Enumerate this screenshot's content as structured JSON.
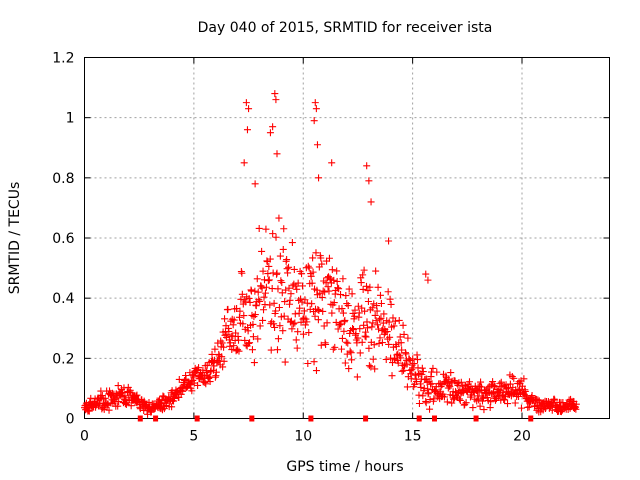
{
  "chart_data": {
    "type": "scatter",
    "title": "Day 040 of 2015, SRMTID for receiver ista",
    "xlabel": "GPS time / hours",
    "ylabel": "SRMTID / TECUs",
    "xlim": [
      0,
      24
    ],
    "ylim": [
      0,
      1.2
    ],
    "xticks": [
      0,
      5,
      10,
      15,
      20
    ],
    "xtick_labels": [
      "0",
      "5",
      "10",
      "15",
      "20"
    ],
    "yticks": [
      0,
      0.2,
      0.4,
      0.6,
      0.8,
      1.0,
      1.2
    ],
    "ytick_labels": [
      "0",
      "0.2",
      "0.4",
      "0.6",
      "0.8",
      "1",
      "1.2"
    ],
    "grid": true,
    "marker": "plus",
    "color": "#ff0000",
    "series": [
      {
        "name": "SRMTID",
        "profile_x": [
          0,
          0.5,
          1,
          1.5,
          2,
          2.5,
          3,
          3.5,
          4,
          4.5,
          5,
          5.5,
          6,
          6.5,
          7,
          7.5,
          8,
          8.5,
          9,
          9.5,
          10,
          10.5,
          11,
          11.5,
          12,
          12.5,
          13,
          13.5,
          14,
          14.5,
          15,
          15.5,
          16,
          16.5,
          17,
          17.5,
          18,
          18.5,
          19,
          19.5,
          20,
          20.5,
          21,
          21.5,
          22,
          22.5
        ],
        "profile_y": [
          0.04,
          0.05,
          0.06,
          0.07,
          0.08,
          0.05,
          0.04,
          0.05,
          0.07,
          0.11,
          0.14,
          0.14,
          0.17,
          0.28,
          0.32,
          0.36,
          0.42,
          0.43,
          0.45,
          0.4,
          0.36,
          0.42,
          0.4,
          0.35,
          0.32,
          0.3,
          0.35,
          0.3,
          0.26,
          0.22,
          0.16,
          0.12,
          0.09,
          0.1,
          0.1,
          0.09,
          0.08,
          0.08,
          0.09,
          0.09,
          0.1,
          0.05,
          0.04,
          0.05,
          0.04,
          0.04
        ],
        "spread": [
          0.02,
          0.02,
          0.03,
          0.03,
          0.03,
          0.02,
          0.02,
          0.02,
          0.03,
          0.03,
          0.03,
          0.03,
          0.05,
          0.08,
          0.12,
          0.16,
          0.18,
          0.2,
          0.2,
          0.18,
          0.16,
          0.18,
          0.18,
          0.16,
          0.14,
          0.14,
          0.16,
          0.14,
          0.12,
          0.1,
          0.07,
          0.06,
          0.05,
          0.05,
          0.05,
          0.04,
          0.04,
          0.04,
          0.04,
          0.04,
          0.05,
          0.03,
          0.02,
          0.02,
          0.02,
          0.02
        ],
        "peaks": [
          {
            "x": 7.4,
            "y": 1.05
          },
          {
            "x": 7.5,
            "y": 1.03
          },
          {
            "x": 7.45,
            "y": 0.96
          },
          {
            "x": 8.7,
            "y": 1.08
          },
          {
            "x": 8.75,
            "y": 1.06
          },
          {
            "x": 8.6,
            "y": 0.97
          },
          {
            "x": 8.5,
            "y": 0.95
          },
          {
            "x": 8.8,
            "y": 0.88
          },
          {
            "x": 10.55,
            "y": 1.05
          },
          {
            "x": 10.6,
            "y": 1.03
          },
          {
            "x": 10.5,
            "y": 0.99
          },
          {
            "x": 10.65,
            "y": 0.91
          },
          {
            "x": 11.3,
            "y": 0.85
          },
          {
            "x": 12.9,
            "y": 0.84
          },
          {
            "x": 13.0,
            "y": 0.79
          },
          {
            "x": 13.1,
            "y": 0.72
          },
          {
            "x": 7.3,
            "y": 0.85
          },
          {
            "x": 7.8,
            "y": 0.78
          },
          {
            "x": 10.7,
            "y": 0.8
          },
          {
            "x": 15.6,
            "y": 0.48
          },
          {
            "x": 15.7,
            "y": 0.46
          },
          {
            "x": 13.9,
            "y": 0.59
          }
        ],
        "baseline_marks_x": [
          2.55,
          3.25,
          5.15,
          7.65,
          10.35,
          12.85,
          15.3,
          16.0,
          17.9,
          20.4
        ]
      }
    ]
  }
}
